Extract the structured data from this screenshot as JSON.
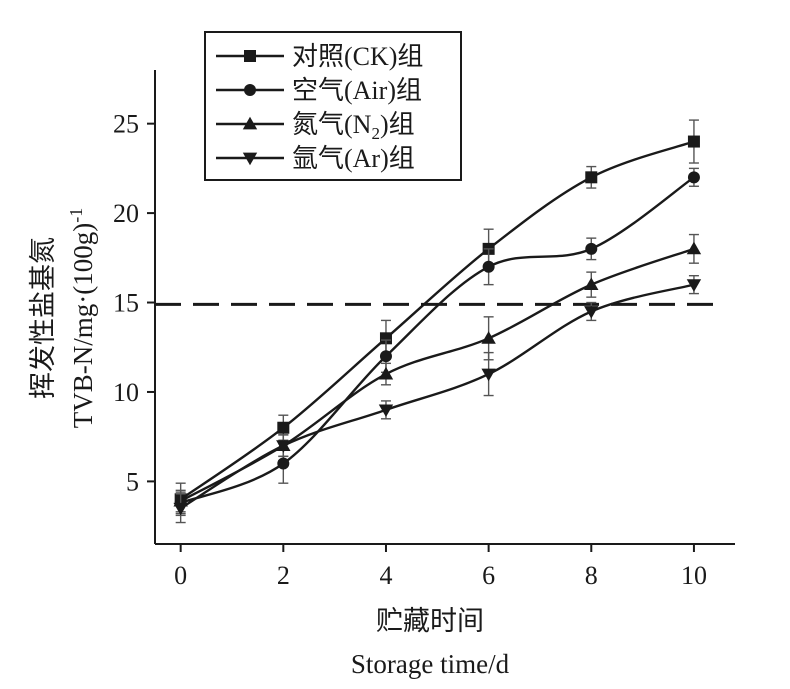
{
  "chart_data": {
    "type": "line",
    "x": [
      0,
      2,
      4,
      6,
      8,
      10
    ],
    "xticks": [
      "0",
      "2",
      "4",
      "6",
      "8",
      "10"
    ],
    "yticks": [
      "5",
      "10",
      "15",
      "20",
      "25"
    ],
    "xlim": [
      -0.5,
      10.8
    ],
    "ylim": [
      1.5,
      28
    ],
    "xlabel_cn": "贮藏时间",
    "xlabel_en": "Storage time/d",
    "ylabel_cn": "挥发性盐基氮",
    "ylabel_en": "TVB-N/mg·(100g)",
    "ylabel_sup": "-1",
    "reference_line": {
      "y": 14.9,
      "style": "dashed"
    },
    "legend_position": "top",
    "series": [
      {
        "name_pre": "对照(CK)组",
        "name_sub": "",
        "name_post": "",
        "marker": "square",
        "values": [
          4.0,
          8.0,
          13.0,
          18.0,
          22.0,
          24.0
        ],
        "errors": [
          0.9,
          0.7,
          1.0,
          1.1,
          0.6,
          1.2
        ]
      },
      {
        "name_pre": "空气(Air)组",
        "name_sub": "",
        "name_post": "",
        "marker": "circle",
        "values": [
          3.8,
          6.0,
          12.0,
          17.0,
          18.0,
          22.0
        ],
        "errors": [
          0.6,
          1.1,
          0.9,
          1.0,
          0.6,
          0.5
        ]
      },
      {
        "name_pre": "氮气(N",
        "name_sub": "2",
        "name_post": ")组",
        "marker": "triangle-up",
        "values": [
          3.9,
          7.0,
          11.0,
          13.0,
          16.0,
          18.0
        ],
        "errors": [
          0.6,
          0.6,
          0.6,
          1.2,
          0.7,
          0.8
        ]
      },
      {
        "name_pre": "氩气(Ar)组",
        "name_sub": "",
        "name_post": "",
        "marker": "triangle-down",
        "values": [
          3.5,
          7.0,
          9.0,
          11.0,
          14.5,
          16.0
        ],
        "errors": [
          0.8,
          0.6,
          0.5,
          1.2,
          0.5,
          0.5
        ]
      }
    ]
  }
}
